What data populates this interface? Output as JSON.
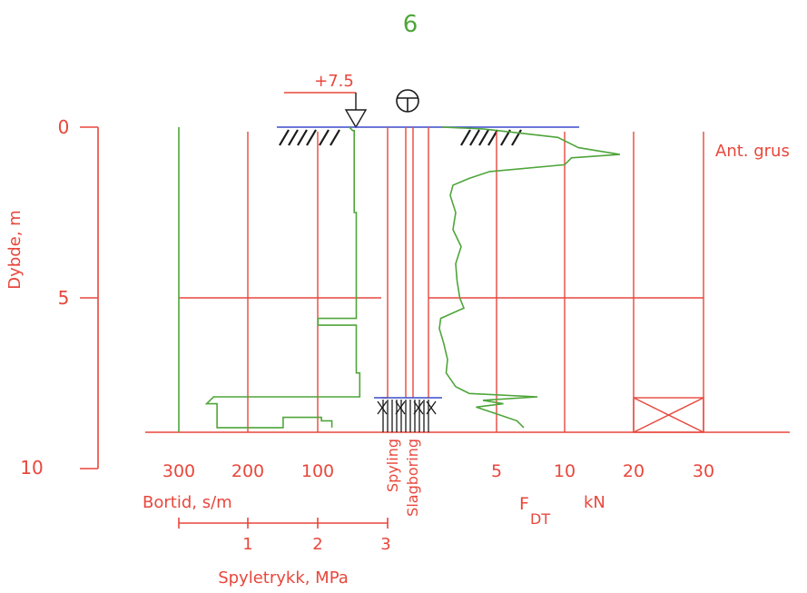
{
  "colors": {
    "red": "#e8473c",
    "green": "#4fa53a",
    "blue": "#3b4bc8",
    "black": "#1a1a1a"
  },
  "chart_data": {
    "type": "line",
    "title": "6",
    "elevation_label": "+7.5",
    "symbol": "total-sounding-symbol",
    "depth_axis": {
      "label": "Dybde, m",
      "ticks": [
        0,
        5,
        10
      ],
      "range": [
        0,
        10
      ]
    },
    "bortid_axis": {
      "label": "Bortid, s/m",
      "ticks": [
        "300",
        "200",
        "100"
      ]
    },
    "spyletrykk_axis": {
      "label": "Spyletrykk, MPa",
      "ticks": [
        "1",
        "2",
        "3"
      ]
    },
    "force_axis": {
      "label_main": "F",
      "label_sub": "DT",
      "unit": "kN",
      "ticks": [
        "5",
        "10",
        "20",
        "30"
      ]
    },
    "column_labels": [
      "Spyling",
      "Slagboring"
    ],
    "annotation": "Ant. grus",
    "bortid_series": {
      "name": "Bortid",
      "depth": [
        0.0,
        0.1,
        0.1,
        2.5,
        2.5,
        5.6,
        5.6,
        5.8,
        5.8,
        7.2,
        7.2,
        7.9,
        7.9,
        8.1,
        8.1,
        8.8,
        8.8,
        8.5,
        8.5,
        8.6,
        8.6,
        8.8
      ],
      "value": [
        55,
        50,
        48,
        48,
        45,
        45,
        100,
        100,
        45,
        45,
        40,
        40,
        250,
        260,
        245,
        245,
        150,
        150,
        95,
        95,
        80,
        80
      ]
    },
    "force_series": {
      "name": "F_DT",
      "depth": [
        0.0,
        0.05,
        0.3,
        0.6,
        0.8,
        0.9,
        1.1,
        1.3,
        1.5,
        1.7,
        2.0,
        2.5,
        3.0,
        3.5,
        4.0,
        4.5,
        5.0,
        5.3,
        5.6,
        5.9,
        6.3,
        6.8,
        7.2,
        7.6,
        7.8,
        7.9,
        8.0,
        8.1,
        8.2,
        8.4,
        8.6,
        8.8
      ],
      "value": [
        1.0,
        4.0,
        9.5,
        12,
        18,
        11,
        10,
        4.5,
        3.0,
        1.8,
        1.6,
        2.0,
        1.8,
        2.4,
        2.0,
        2.1,
        2.3,
        2.6,
        0.9,
        0.8,
        1.1,
        1.4,
        1.3,
        2.0,
        3.0,
        8.0,
        4.0,
        5.5,
        3.5,
        5.0,
        6.5,
        7.0
      ]
    },
    "hatched_box_depth": [
      7.9,
      8.8
    ],
    "grid": true
  }
}
